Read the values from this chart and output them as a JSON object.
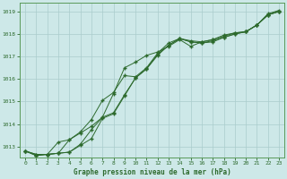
{
  "title": "Graphe pression niveau de la mer (hPa)",
  "bg_color": "#cde8e8",
  "grid_color": "#aacccc",
  "line_color": "#2d6a2d",
  "marker_color": "#2d6a2d",
  "xlim": [
    -0.5,
    23.5
  ],
  "ylim": [
    1012.5,
    1019.4
  ],
  "yticks": [
    1013,
    1014,
    1015,
    1016,
    1017,
    1018,
    1019
  ],
  "xticks": [
    0,
    1,
    2,
    3,
    4,
    5,
    6,
    7,
    8,
    9,
    10,
    11,
    12,
    13,
    14,
    15,
    16,
    17,
    18,
    19,
    20,
    21,
    22,
    23
  ],
  "series": [
    [
      1012.8,
      1012.65,
      1012.65,
      1012.7,
      1013.3,
      1013.6,
      1013.9,
      1014.3,
      1015.35,
      1016.5,
      1016.75,
      1017.05,
      1017.2,
      1017.45,
      1017.75,
      1017.45,
      1017.65,
      1017.75,
      1017.9,
      1018.05,
      1018.1,
      1018.4,
      1018.85,
      1019.0
    ],
    [
      1012.8,
      1012.65,
      1012.65,
      1013.2,
      1013.3,
      1013.65,
      1014.2,
      1015.05,
      1015.4,
      1016.15,
      1016.1,
      1016.5,
      1017.15,
      1017.6,
      1017.8,
      1017.7,
      1017.65,
      1017.75,
      1017.95,
      1018.05,
      1018.1,
      1018.4,
      1018.9,
      1019.05
    ],
    [
      1012.8,
      1012.6,
      1012.65,
      1012.7,
      1012.75,
      1013.05,
      1013.35,
      1014.25,
      1014.45,
      1015.25,
      1016.05,
      1016.45,
      1017.05,
      1017.5,
      1017.8,
      1017.65,
      1017.6,
      1017.65,
      1017.85,
      1018.0,
      1018.1,
      1018.4,
      1018.85,
      1019.0
    ],
    [
      1012.8,
      1012.6,
      1012.65,
      1012.7,
      1012.75,
      1013.1,
      1013.75,
      1014.3,
      1014.5,
      1015.3,
      1016.05,
      1016.45,
      1017.1,
      1017.5,
      1017.8,
      1017.65,
      1017.6,
      1017.7,
      1017.85,
      1018.0,
      1018.1,
      1018.4,
      1018.85,
      1019.0
    ]
  ]
}
